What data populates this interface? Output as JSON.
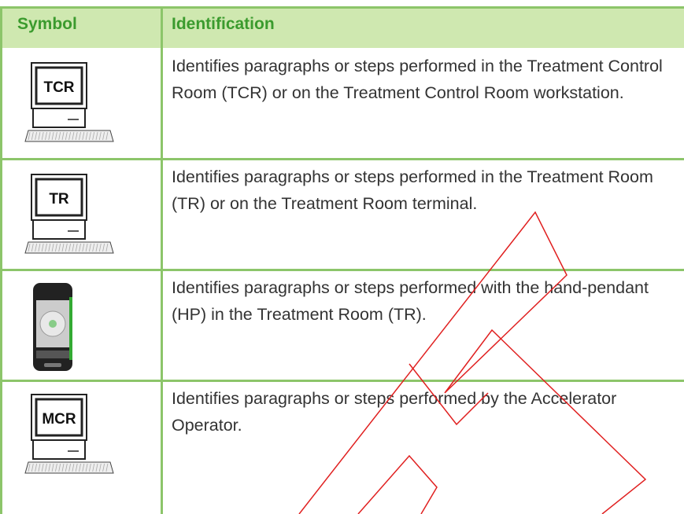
{
  "table": {
    "header": [
      "Symbol",
      "Identification"
    ],
    "rows": [
      {
        "icon_label": "TCR",
        "text": "Identifies paragraphs or steps performed in the Treatment Control Room (TCR) or on the Treatment Control Room workstation."
      },
      {
        "icon_label": "TR",
        "text": "Identifies paragraphs or steps performed in the Treatment Room (TR) or on the Treatment Room terminal."
      },
      {
        "icon_label": null,
        "text": "Identifies paragraphs or steps performed with the hand-pendant (HP) in the Treatment Room (TR)."
      },
      {
        "icon_label": "MCR",
        "text": "Identifies paragraphs or steps performed by the Accelerator Operator."
      }
    ]
  }
}
